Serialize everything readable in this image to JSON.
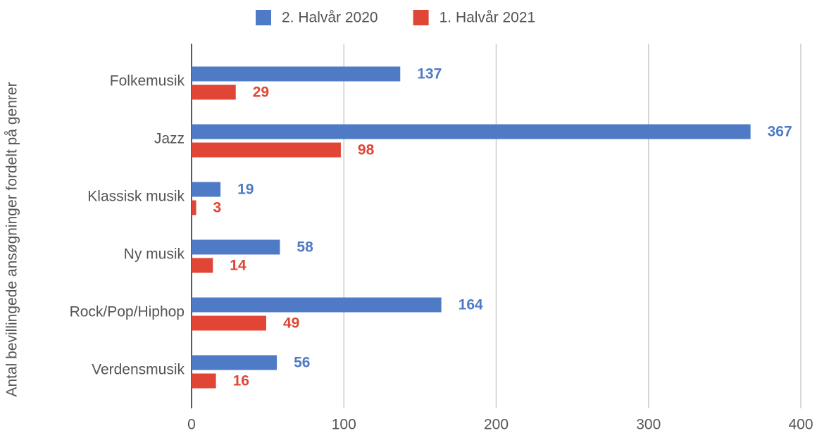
{
  "chart_data": {
    "type": "barh",
    "ylabel": "Antal bevillingede ansøgninger fordelt på genrer",
    "categories": [
      "Folkemusik",
      "Jazz",
      "Klassisk musik",
      "Ny musik",
      "Rock/Pop/Hiphop",
      "Verdensmusik"
    ],
    "series": [
      {
        "name": "2. Halvår 2020",
        "color": "#4f7bc6",
        "values": [
          137,
          367,
          19,
          58,
          164,
          56
        ]
      },
      {
        "name": "1. Halvår 2021",
        "color": "#e04535",
        "values": [
          29,
          98,
          3,
          14,
          49,
          16
        ]
      }
    ],
    "xlim": [
      0,
      400
    ],
    "xticks": [
      0,
      100,
      200,
      300,
      400
    ],
    "grid": true,
    "legend": "top"
  }
}
